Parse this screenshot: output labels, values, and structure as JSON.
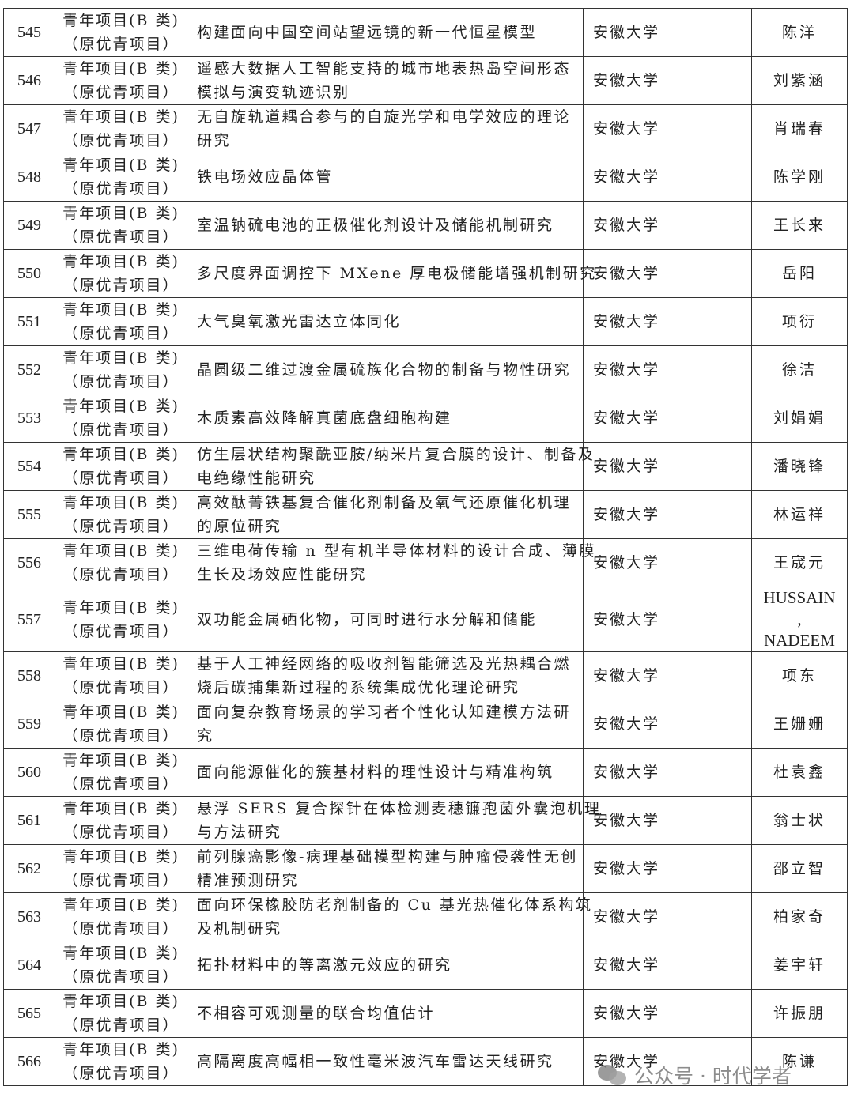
{
  "type_line1": "青年项目(B 类)",
  "type_line2": "（原优青项目）",
  "rows": [
    {
      "no": "545",
      "title": [
        "构建面向中国空间站望远镜的新一代恒星模型"
      ],
      "org": "安徽大学",
      "name": [
        "陈洋"
      ]
    },
    {
      "no": "546",
      "title": [
        "遥感大数据人工智能支持的城市地表热岛空间形态",
        "模拟与演变轨迹识别"
      ],
      "org": "安徽大学",
      "name": [
        "刘紫涵"
      ]
    },
    {
      "no": "547",
      "title": [
        "无自旋轨道耦合参与的自旋光学和电学效应的理论",
        "研究"
      ],
      "org": "安徽大学",
      "name": [
        "肖瑞春"
      ]
    },
    {
      "no": "548",
      "title": [
        "铁电场效应晶体管"
      ],
      "org": "安徽大学",
      "name": [
        "陈学刚"
      ]
    },
    {
      "no": "549",
      "title": [
        "室温钠硫电池的正极催化剂设计及储能机制研究"
      ],
      "org": "安徽大学",
      "name": [
        "王长来"
      ]
    },
    {
      "no": "550",
      "title": [
        "多尺度界面调控下 MXene 厚电极储能增强机制研究"
      ],
      "org": "安徽大学",
      "name": [
        "岳阳"
      ]
    },
    {
      "no": "551",
      "title": [
        "大气臭氧激光雷达立体同化"
      ],
      "org": "安徽大学",
      "name": [
        "项衍"
      ]
    },
    {
      "no": "552",
      "title": [
        "晶圆级二维过渡金属硫族化合物的制备与物性研究"
      ],
      "org": "安徽大学",
      "name": [
        "徐洁"
      ]
    },
    {
      "no": "553",
      "title": [
        "木质素高效降解真菌底盘细胞构建"
      ],
      "org": "安徽大学",
      "name": [
        "刘娟娟"
      ]
    },
    {
      "no": "554",
      "title": [
        "仿生层状结构聚酰亚胺/纳米片复合膜的设计、制备及",
        "电绝缘性能研究"
      ],
      "org": "安徽大学",
      "name": [
        "潘晓锋"
      ]
    },
    {
      "no": "555",
      "title": [
        "高效酞菁铁基复合催化剂制备及氧气还原催化机理",
        "的原位研究"
      ],
      "org": "安徽大学",
      "name": [
        "林运祥"
      ]
    },
    {
      "no": "556",
      "title": [
        "三维电荷传输 n 型有机半导体材料的设计合成、薄膜",
        "生长及场效应性能研究"
      ],
      "org": "安徽大学",
      "name": [
        "王宬元"
      ]
    },
    {
      "no": "557",
      "title": [
        "双功能金属硒化物，可同时进行水分解和储能"
      ],
      "org": "安徽大学",
      "name": [
        "HUSSAIN",
        ",",
        "NADEEM"
      ]
    },
    {
      "no": "558",
      "title": [
        "基于人工神经网络的吸收剂智能筛选及光热耦合燃",
        "烧后碳捕集新过程的系统集成优化理论研究"
      ],
      "org": "安徽大学",
      "name": [
        "项东"
      ]
    },
    {
      "no": "559",
      "title": [
        "面向复杂教育场景的学习者个性化认知建模方法研",
        "究"
      ],
      "org": "安徽大学",
      "name": [
        "王姗姗"
      ]
    },
    {
      "no": "560",
      "title": [
        "面向能源催化的簇基材料的理性设计与精准构筑"
      ],
      "org": "安徽大学",
      "name": [
        "杜袁鑫"
      ]
    },
    {
      "no": "561",
      "title": [
        "悬浮 SERS 复合探针在体检测麦穗镰孢菌外囊泡机理",
        "与方法研究"
      ],
      "org": "安徽大学",
      "name": [
        "翁士状"
      ]
    },
    {
      "no": "562",
      "title": [
        "前列腺癌影像-病理基础模型构建与肿瘤侵袭性无创",
        "精准预测研究"
      ],
      "org": "安徽大学",
      "name": [
        "邵立智"
      ]
    },
    {
      "no": "563",
      "title": [
        "面向环保橡胶防老剂制备的 Cu 基光热催化体系构筑",
        "及机制研究"
      ],
      "org": "安徽大学",
      "name": [
        "柏家奇"
      ]
    },
    {
      "no": "564",
      "title": [
        "拓扑材料中的等离激元效应的研究"
      ],
      "org": "安徽大学",
      "name": [
        "姜宇轩"
      ]
    },
    {
      "no": "565",
      "title": [
        "不相容可观测量的联合均值估计"
      ],
      "org": "安徽大学",
      "name": [
        "许振朋"
      ]
    },
    {
      "no": "566",
      "title": [
        "高隔离度高幅相一致性毫米波汽车雷达天线研究"
      ],
      "org": "安徽大学",
      "name": [
        "陈谦"
      ]
    }
  ],
  "watermark": "公众号 · 时代学者",
  "watermark_icon": "wechat-icon"
}
